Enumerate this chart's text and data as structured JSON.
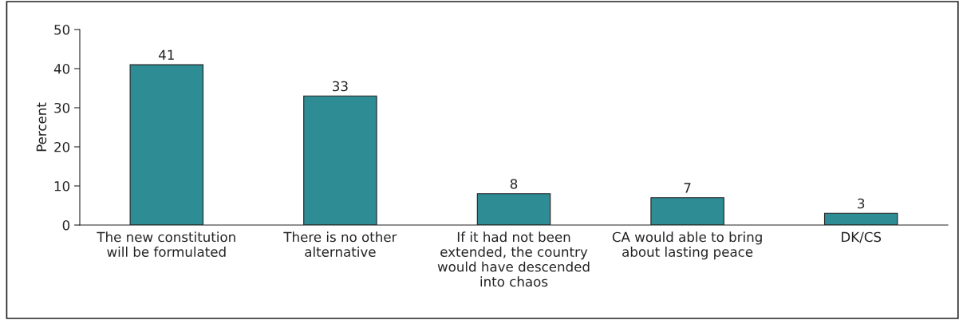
{
  "chart_data": {
    "type": "bar",
    "categories": [
      "The new constitution\nwill be formulated",
      "There is no other\nalternative",
      "If it had not been\nextended, the country\nwould have descended\ninto chaos",
      "CA would able to bring\nabout lasting peace",
      "DK/CS"
    ],
    "values": [
      41,
      33,
      8,
      7,
      3
    ],
    "color": "#2e8c94",
    "ylabel": "Percent",
    "ylim": [
      0,
      50
    ],
    "yticks": [
      0,
      10,
      20,
      30,
      40,
      50
    ],
    "data_labels": true,
    "grid": false,
    "legend": false
  }
}
